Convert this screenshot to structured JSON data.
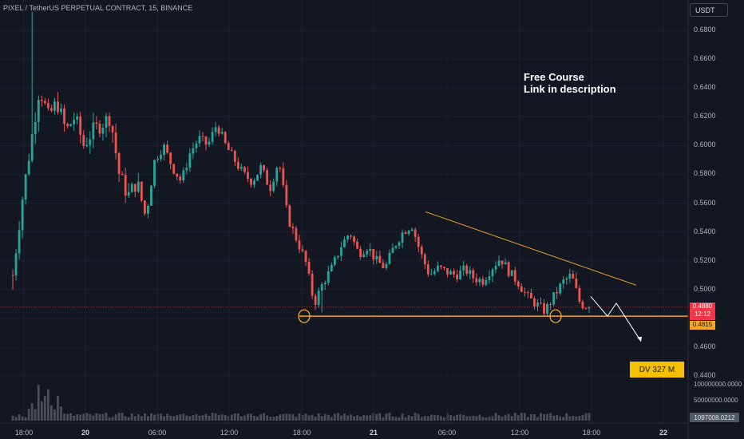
{
  "header": {
    "title": "PIXEL / TetherUS PERPETUAL CONTRACT, 15, BINANCE",
    "currency": "USDT"
  },
  "annotation": {
    "line1": "Free Course",
    "line2": "Link in description"
  },
  "price_badge": {
    "price": "0.4880",
    "countdown": "12:12",
    "color": "#f23645"
  },
  "level_badge": {
    "price": "0.4815",
    "color": "#f5a623"
  },
  "dv_label": "DV 327 M",
  "volume_axis": [
    "100000000.0000",
    "50000000.0000"
  ],
  "volume_badge": "1097008.0212",
  "colors": {
    "up": "#26a69a",
    "down": "#ef5350",
    "trend": "#f5a623",
    "support": "#f5a623",
    "background": "#131722"
  },
  "chart_data": {
    "type": "candlestick",
    "title": "PIXEL / TetherUS PERPETUAL CONTRACT, 15, BINANCE",
    "ylim": [
      0.44,
      0.69
    ],
    "y_ticks": [
      "0.6800",
      "0.6600",
      "0.6400",
      "0.6200",
      "0.6000",
      "0.5800",
      "0.5600",
      "0.5400",
      "0.5200",
      "0.5000",
      "0.4800",
      "0.4600",
      "0.4400"
    ],
    "x_ticks": [
      {
        "label": "18:00",
        "bold": false
      },
      {
        "label": "20",
        "bold": true
      },
      {
        "label": "06:00",
        "bold": false
      },
      {
        "label": "12:00",
        "bold": false
      },
      {
        "label": "18:00",
        "bold": false
      },
      {
        "label": "21",
        "bold": true
      },
      {
        "label": "06:00",
        "bold": false
      },
      {
        "label": "12:00",
        "bold": false
      },
      {
        "label": "18:00",
        "bold": false
      },
      {
        "label": "22",
        "bold": true
      }
    ],
    "close_path": [
      0.51,
      0.56,
      0.6,
      0.64,
      0.62,
      0.63,
      0.61,
      0.62,
      0.6,
      0.61,
      0.615,
      0.62,
      0.58,
      0.565,
      0.575,
      0.55,
      0.59,
      0.6,
      0.585,
      0.575,
      0.595,
      0.605,
      0.6,
      0.615,
      0.6,
      0.59,
      0.58,
      0.575,
      0.585,
      0.57,
      0.59,
      0.55,
      0.535,
      0.52,
      0.49,
      0.505,
      0.515,
      0.53,
      0.54,
      0.525,
      0.53,
      0.52,
      0.515,
      0.53,
      0.54,
      0.545,
      0.525,
      0.51,
      0.515,
      0.512,
      0.51,
      0.514,
      0.508,
      0.506,
      0.515,
      0.522,
      0.512,
      0.505,
      0.495,
      0.49,
      0.485,
      0.495,
      0.505,
      0.51,
      0.49,
      0.488
    ],
    "trendline": {
      "from": [
        0.55,
        0.554
      ],
      "to": [
        0.855,
        0.503
      ]
    },
    "support_level": 0.4815,
    "current_price": 0.488,
    "projection": [
      0.4952,
      0.4815,
      0.4905,
      0.464
    ]
  }
}
